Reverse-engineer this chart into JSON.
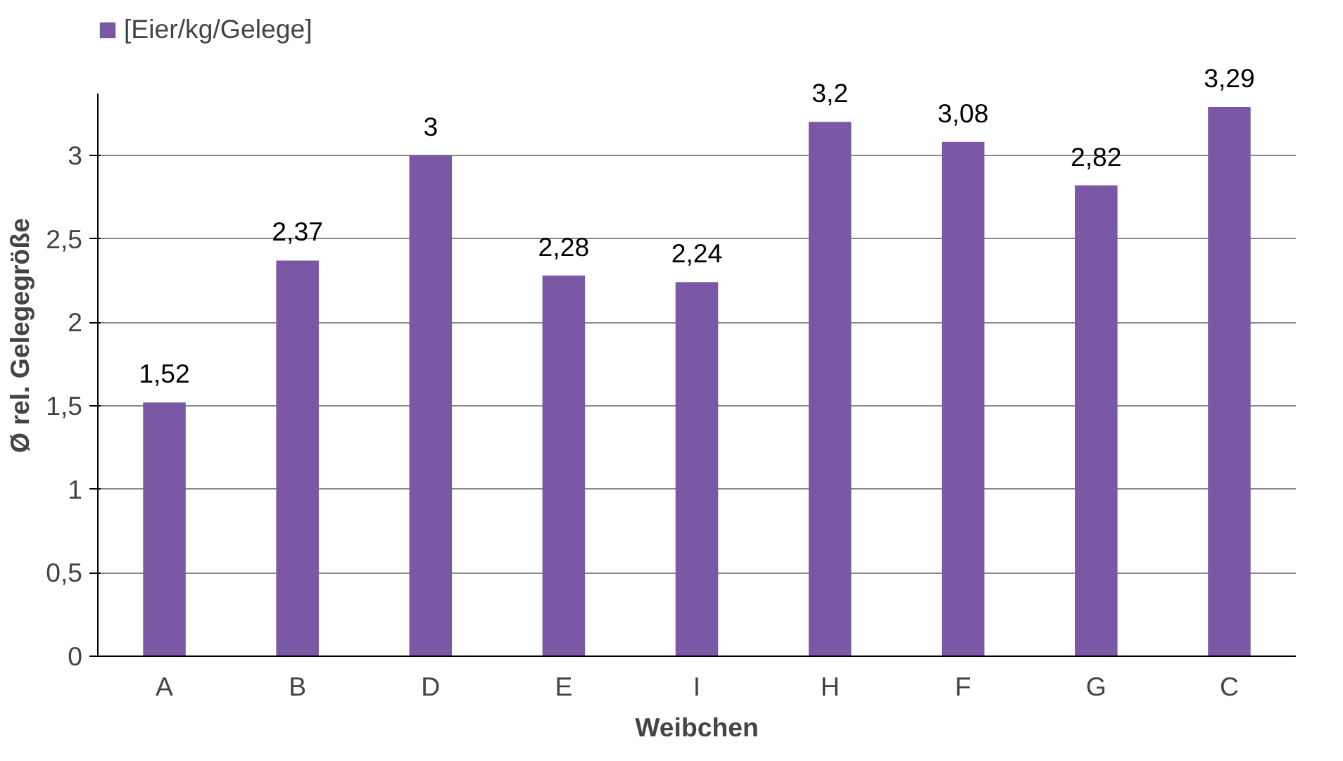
{
  "chart_data": {
    "type": "bar",
    "xlabel": "Weibchen",
    "ylabel": "Ø rel. Gelegegröße",
    "categories": [
      "A",
      "B",
      "D",
      "E",
      "I",
      "H",
      "F",
      "G",
      "C"
    ],
    "series": [
      {
        "name": "[Eier/kg/Gelege]",
        "color": "#7a58a6",
        "values": [
          1.52,
          2.37,
          3,
          2.28,
          2.24,
          3.2,
          3.08,
          2.82,
          3.29
        ],
        "value_labels": [
          "1,52",
          "2,37",
          "3",
          "2,28",
          "2,24",
          "3,2",
          "3,08",
          "2,82",
          "3,29"
        ]
      }
    ],
    "ylim": [
      0,
      3.37
    ],
    "yticks": [
      0,
      {
        "value": 0.5,
        "label": "0,5"
      },
      1,
      {
        "value": 1.5,
        "label": "1,5"
      },
      2,
      {
        "value": 2.5,
        "label": "2,5"
      },
      3
    ],
    "grid": "y",
    "legend": "top left"
  }
}
